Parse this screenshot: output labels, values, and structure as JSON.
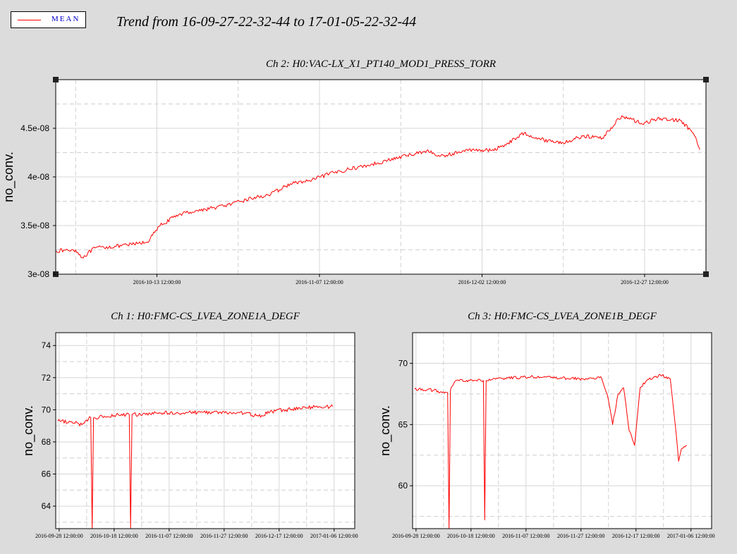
{
  "legend": {
    "label": "MEAN",
    "line_color": "#ff0000",
    "label_color": "#0000cc"
  },
  "header": {
    "title": "Trend from 16-09-27-22-32-44 to 17-01-05-22-32-44"
  },
  "colors": {
    "series": "#ff0000",
    "background": "#dcdcdc",
    "plot": "#ffffff"
  },
  "chart_data": [
    {
      "id": "ch2",
      "type": "line",
      "title": "Ch 2: H0:VAC-LX_X1_PT140_MOD1_PRESS_TORR",
      "ylabel": "no_conv.",
      "xlim": [
        "2016-09-27 22:32",
        "2017-01-05 22:32"
      ],
      "ylim": [
        3e-08,
        5e-08
      ],
      "yticks": [
        3e-08,
        3.5e-08,
        4e-08,
        4.5e-08
      ],
      "ytick_labels": [
        "3e-08",
        "3.5e-08",
        "4e-08",
        "4.5e-08"
      ],
      "xtick_labels": [
        "2016-10-13 12:00:00",
        "2016-11-07 12:00:00",
        "2016-12-02 12:00:00",
        "2016-12-27 12:00:00"
      ],
      "xticks": [
        "2016-10-13 12:00",
        "2016-11-07 12:00",
        "2016-12-02 12:00",
        "2016-12-27 12:00"
      ],
      "grid": true,
      "noise": 2e-10,
      "series": [
        {
          "color": "#ff0000",
          "x": [
            "2016-09-28",
            "2016-10-01",
            "2016-10-02",
            "2016-10-04",
            "2016-10-08",
            "2016-10-10",
            "2016-10-12",
            "2016-10-14",
            "2016-10-17",
            "2016-10-22",
            "2016-10-25",
            "2016-10-28",
            "2016-10-31",
            "2016-11-03",
            "2016-11-06",
            "2016-11-09",
            "2016-11-12",
            "2016-11-15",
            "2016-11-18",
            "2016-11-21",
            "2016-11-24",
            "2016-11-26",
            "2016-11-28",
            "2016-12-01",
            "2016-12-02",
            "2016-12-04",
            "2016-12-06",
            "2016-12-09",
            "2016-12-12",
            "2016-12-15",
            "2016-12-18",
            "2016-12-21",
            "2016-12-24",
            "2016-12-27",
            "2016-12-30",
            "2017-01-02",
            "2017-01-04",
            "2017-01-05"
          ],
          "y": [
            3.24e-08,
            3.25e-08,
            3.17e-08,
            3.27e-08,
            3.29e-08,
            3.31e-08,
            3.33e-08,
            3.5e-08,
            3.62e-08,
            3.68e-08,
            3.72e-08,
            3.78e-08,
            3.82e-08,
            3.93e-08,
            3.96e-08,
            4.03e-08,
            4.08e-08,
            4.12e-08,
            4.17e-08,
            4.22e-08,
            4.27e-08,
            4.21e-08,
            4.24e-08,
            4.28e-08,
            4.28e-08,
            4.27e-08,
            4.33e-08,
            4.45e-08,
            4.38e-08,
            4.35e-08,
            4.42e-08,
            4.4e-08,
            4.63e-08,
            4.55e-08,
            4.6e-08,
            4.58e-08,
            4.45e-08,
            4.28e-08
          ]
        }
      ]
    },
    {
      "id": "ch1",
      "type": "line",
      "title": "Ch 1: H0:FMC-CS_LVEA_ZONE1A_DEGF",
      "ylabel": "no_conv.",
      "xlim": [
        "2016-09-27 06:00",
        "2017-01-14 00:00"
      ],
      "ylim": [
        62.6,
        74.8
      ],
      "yticks": [
        64,
        66,
        68,
        70,
        72,
        74
      ],
      "ytick_labels": [
        "64",
        "66",
        "68",
        "70",
        "72",
        "74"
      ],
      "xtick_labels": [
        "2016-09-28 12:00:00",
        "2016-10-18 12:00:00",
        "2016-11-07 12:00:00",
        "2016-11-27 12:00:00",
        "2016-12-17 12:00:00",
        "2017-01-06 12:00:00"
      ],
      "xticks": [
        "2016-09-28 12:00",
        "2016-10-18 12:00",
        "2016-11-07 12:00",
        "2016-11-27 12:00",
        "2016-12-17 12:00",
        "2017-01-06 12:00"
      ],
      "grid": true,
      "noise": 0.12,
      "series": [
        {
          "color": "#ff0000",
          "x": [
            "2016-09-28",
            "2016-10-05",
            "2016-10-06",
            "2016-10-08",
            "2016-10-10",
            "2016-10-10 12:00",
            "2016-10-11",
            "2016-10-15",
            "2016-10-20",
            "2016-10-24",
            "2016-10-24 12:00",
            "2016-10-25",
            "2016-10-30",
            "2016-11-03",
            "2016-11-10",
            "2016-11-20",
            "2016-11-30",
            "2016-12-05",
            "2016-12-10",
            "2016-12-15",
            "2016-12-20",
            "2016-12-25",
            "2017-01-01",
            "2017-01-06"
          ],
          "y": [
            69.3,
            69.2,
            69.0,
            69.3,
            69.5,
            62.6,
            69.5,
            69.6,
            69.7,
            69.7,
            62.6,
            69.7,
            69.7,
            69.8,
            69.8,
            69.85,
            69.8,
            69.8,
            69.6,
            69.9,
            70.0,
            70.1,
            70.2,
            70.2
          ]
        }
      ]
    },
    {
      "id": "ch3",
      "type": "line",
      "title": "Ch 3: H0:FMC-CS_LVEA_ZONE1B_DEGF",
      "ylabel": "no_conv.",
      "xlim": [
        "2016-09-27 06:00",
        "2017-01-14 00:00"
      ],
      "ylim": [
        56.5,
        72.5
      ],
      "yticks": [
        60,
        65,
        70
      ],
      "ytick_labels": [
        "60",
        "65",
        "70"
      ],
      "xtick_labels": [
        "2016-09-28 12:00:00",
        "2016-10-18 12:00:00",
        "2016-11-07 12:00:00",
        "2016-11-27 12:00:00",
        "2016-12-17 12:00:00",
        "2017-01-06 12:00:00"
      ],
      "xticks": [
        "2016-09-28 12:00",
        "2016-10-18 12:00",
        "2016-11-07 12:00",
        "2016-11-27 12:00",
        "2016-12-17 12:00",
        "2017-01-06 12:00"
      ],
      "grid": true,
      "noise": 0.12,
      "series": [
        {
          "color": "#ff0000",
          "x": [
            "2016-09-28",
            "2016-10-05",
            "2016-10-08",
            "2016-10-10",
            "2016-10-10 12:00",
            "2016-10-11",
            "2016-10-13",
            "2016-10-20",
            "2016-10-23",
            "2016-10-23 12:00",
            "2016-10-24",
            "2016-11-01",
            "2016-11-10",
            "2016-11-20",
            "2016-11-30",
            "2016-12-02",
            "2016-12-05",
            "2016-12-07",
            "2016-12-09",
            "2016-12-11",
            "2016-12-13",
            "2016-12-15",
            "2016-12-17",
            "2016-12-19",
            "2016-12-21",
            "2016-12-24",
            "2016-12-27",
            "2016-12-30",
            "2017-01-01",
            "2017-01-02",
            "2017-01-03",
            "2017-01-04",
            "2017-01-05"
          ],
          "y": [
            67.9,
            67.8,
            67.6,
            67.6,
            56.5,
            67.8,
            68.6,
            68.6,
            68.6,
            57.2,
            68.6,
            68.8,
            68.9,
            68.8,
            68.7,
            68.8,
            68.8,
            67.5,
            65.0,
            67.5,
            68.0,
            64.5,
            63.3,
            68.0,
            68.5,
            68.9,
            69.0,
            68.7,
            64.5,
            62.0,
            63.0,
            63.2,
            63.3
          ]
        }
      ]
    }
  ]
}
